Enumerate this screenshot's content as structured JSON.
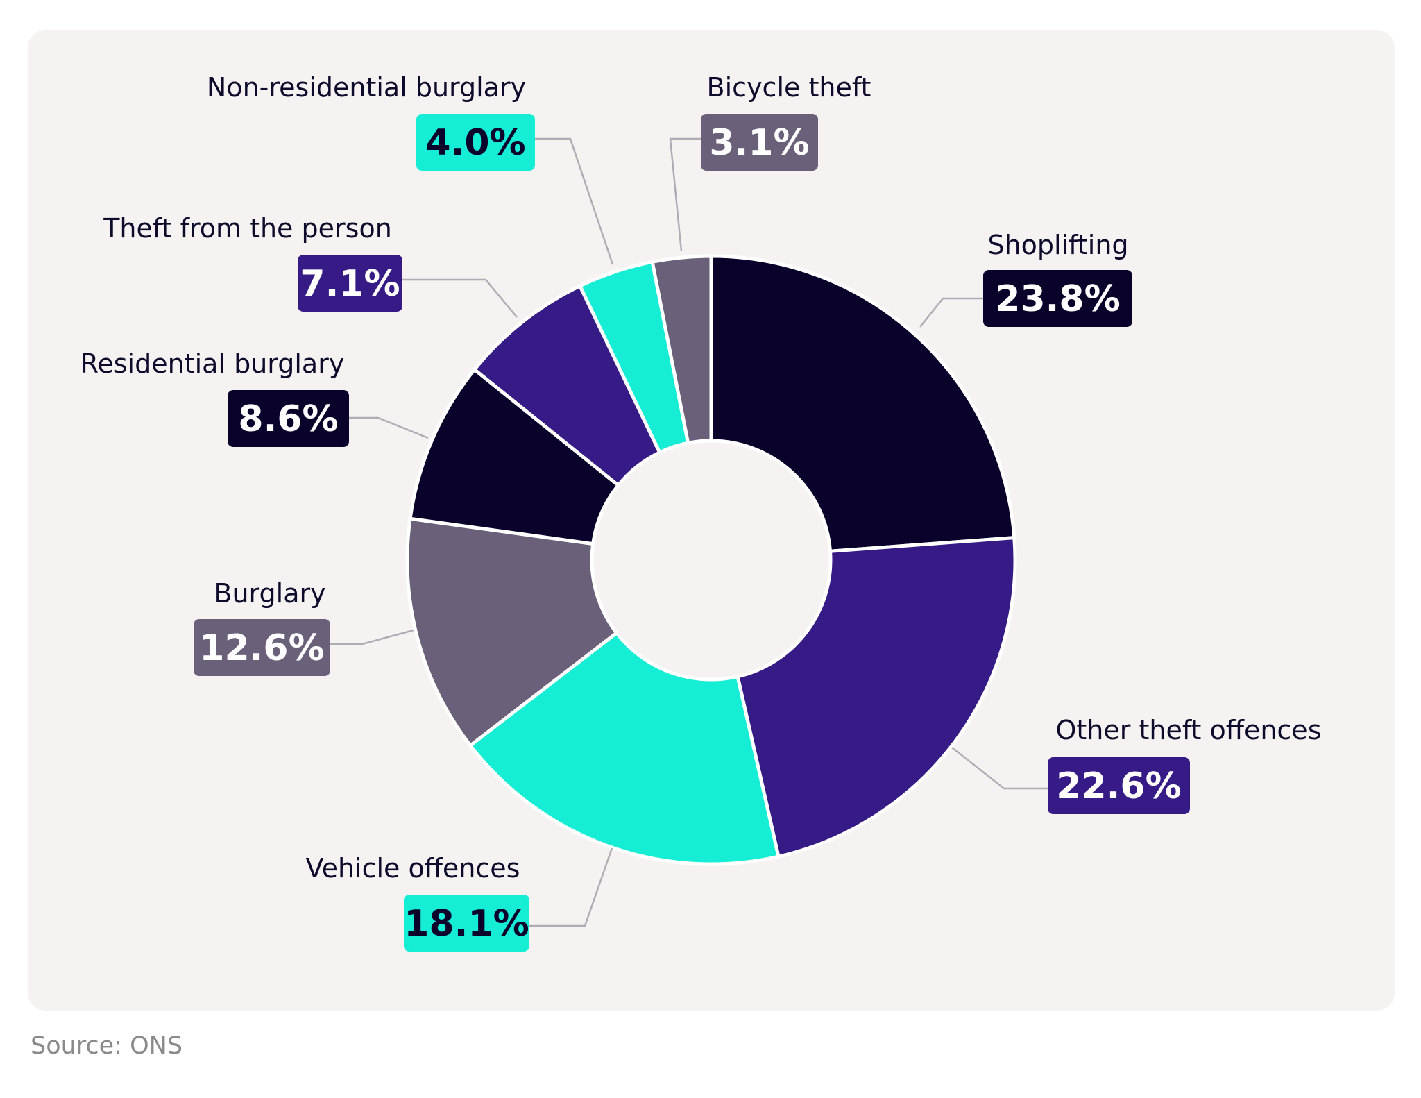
{
  "source_text": "Source: ONS",
  "colors": {
    "navy": "#0b022b",
    "purple": "#361a86",
    "teal": "#15eed5",
    "grey": "#6a6079",
    "card_background": "#f6f2f1",
    "leader_line": "#b0acb6"
  },
  "chart_data": {
    "type": "pie",
    "variant": "donut",
    "start": "top, clockwise",
    "slices": [
      {
        "label": "Shoplifting",
        "value": 23.8,
        "display": "23.8%",
        "color": "#0b022b",
        "text_color": "#ffffff"
      },
      {
        "label": "Other theft offences",
        "value": 22.6,
        "display": "22.6%",
        "color": "#361a86",
        "text_color": "#ffffff"
      },
      {
        "label": "Vehicle offences",
        "value": 18.1,
        "display": "18.1%",
        "color": "#15eed5",
        "text_color": "#0b022b"
      },
      {
        "label": "Burglary",
        "value": 12.6,
        "display": "12.6%",
        "color": "#6a6079",
        "text_color": "#ffffff"
      },
      {
        "label": "Residential burglary",
        "value": 8.6,
        "display": "8.6%",
        "color": "#0b022b",
        "text_color": "#ffffff"
      },
      {
        "label": "Theft from the person",
        "value": 7.1,
        "display": "7.1%",
        "color": "#361a86",
        "text_color": "#ffffff"
      },
      {
        "label": "Non-residential burglary",
        "value": 4.0,
        "display": "4.0%",
        "color": "#15eed5",
        "text_color": "#0b022b"
      },
      {
        "label": "Bicycle theft",
        "value": 3.1,
        "display": "3.1%",
        "color": "#6a6079",
        "text_color": "#ffffff"
      }
    ]
  }
}
